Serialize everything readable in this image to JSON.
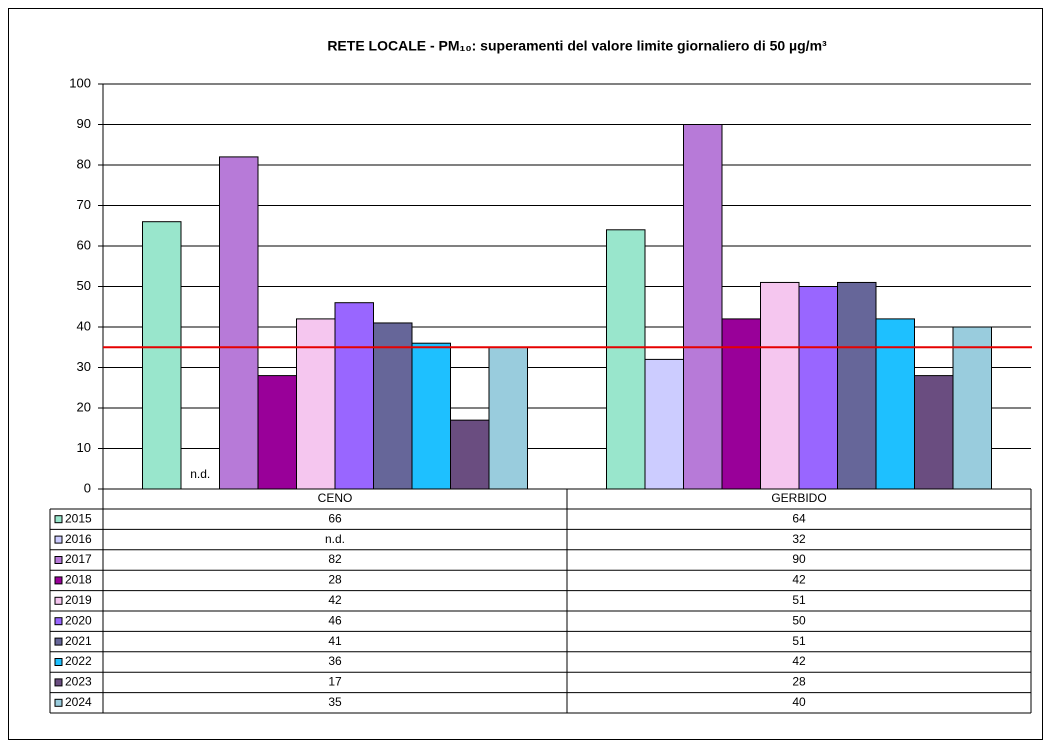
{
  "chart_data": {
    "type": "bar",
    "title": "RETE LOCALE - PM₁₀: superamenti del valore limite giornaliero di 50 µg/m³",
    "categories": [
      "CENO",
      "GERBIDO"
    ],
    "series": [
      {
        "name": "2015",
        "color": "#99e6cc",
        "values": [
          66,
          64
        ]
      },
      {
        "name": "2016",
        "color": "#ccccff",
        "values": [
          null,
          32
        ],
        "value_labels": [
          "n.d.",
          "32"
        ]
      },
      {
        "name": "2017",
        "color": "#b77ad8",
        "values": [
          82,
          90
        ]
      },
      {
        "name": "2018",
        "color": "#990099",
        "values": [
          28,
          42
        ]
      },
      {
        "name": "2019",
        "color": "#f5c6ef",
        "values": [
          42,
          51
        ]
      },
      {
        "name": "2020",
        "color": "#9966ff",
        "values": [
          46,
          50
        ]
      },
      {
        "name": "2021",
        "color": "#666699",
        "values": [
          41,
          51
        ]
      },
      {
        "name": "2022",
        "color": "#1ec0ff",
        "values": [
          36,
          42
        ]
      },
      {
        "name": "2023",
        "color": "#6a4d80",
        "values": [
          17,
          28
        ]
      },
      {
        "name": "2024",
        "color": "#99ccdd",
        "values": [
          35,
          40
        ]
      }
    ],
    "ylim": [
      0,
      100
    ],
    "yticks": [
      0,
      10,
      20,
      30,
      40,
      50,
      60,
      70,
      80,
      90,
      100
    ],
    "grid": true,
    "reference_line": {
      "value": 35,
      "color": "#e60000"
    }
  }
}
